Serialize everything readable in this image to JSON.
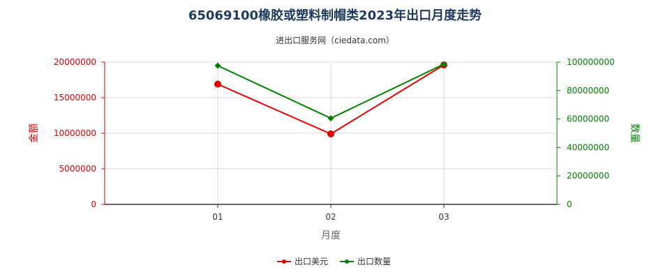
{
  "chart_data": {
    "type": "line",
    "title": "65069100橡胶或塑料制帽类2023年出口月度走势",
    "subtitle": "进出口服务网（ciedata.com）",
    "xlabel": "月度",
    "ylabel_left": "金额",
    "ylabel_right": "数量",
    "categories": [
      "01",
      "02",
      "03"
    ],
    "y_left": {
      "min": 0,
      "max": 20000000,
      "ticks": [
        "0",
        "5000000",
        "10000000",
        "15000000",
        "20000000"
      ]
    },
    "y_right": {
      "min": 0,
      "max": 100000000,
      "ticks": [
        "0",
        "20000000",
        "40000000",
        "60000000",
        "80000000",
        "100000000"
      ]
    },
    "series": [
      {
        "name": "出口美元",
        "axis": "left",
        "color": "#e00000",
        "values": [
          16900000,
          9900000,
          19600000
        ]
      },
      {
        "name": "出口数量",
        "axis": "right",
        "color": "#008000",
        "values": [
          97500000,
          60500000,
          98500000
        ]
      }
    ],
    "grid": true,
    "legend_position": "bottom"
  }
}
